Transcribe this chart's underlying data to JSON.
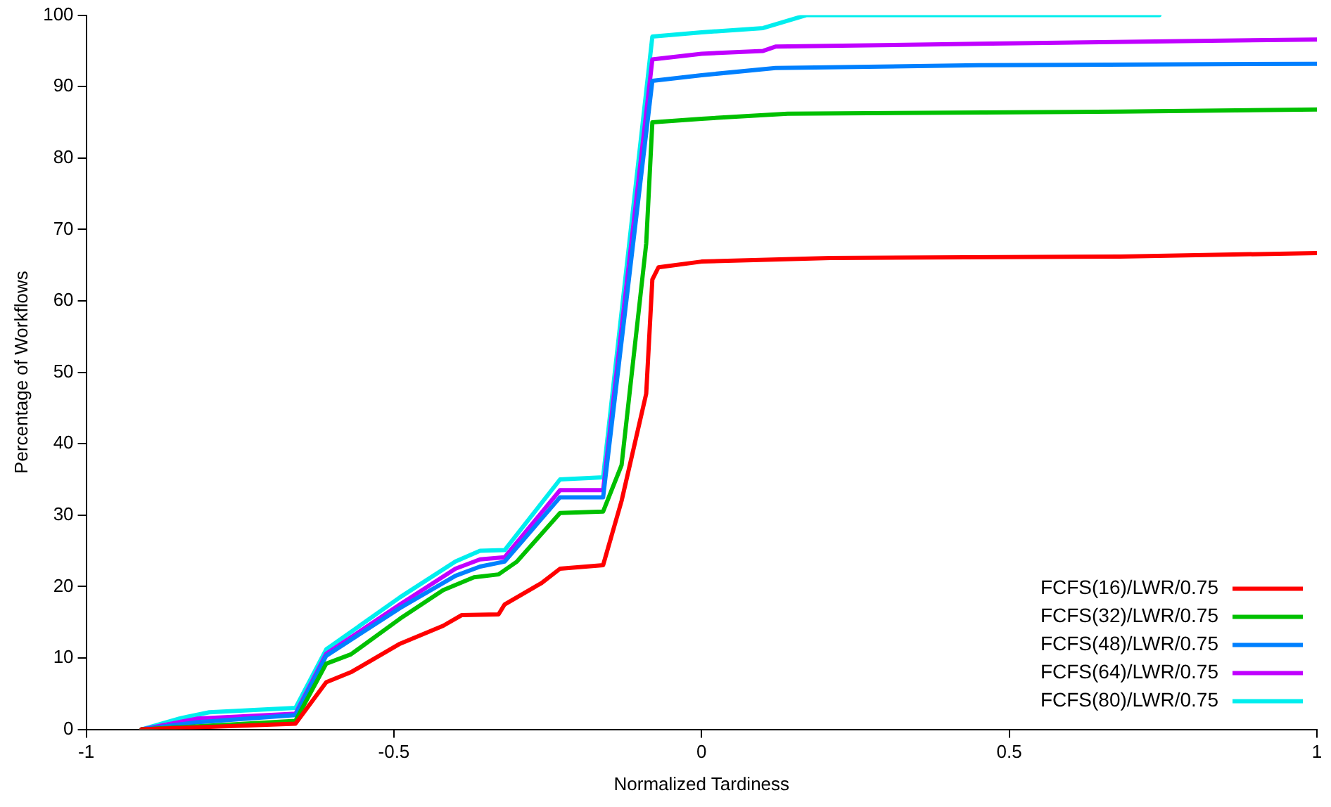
{
  "chart_data": {
    "type": "line",
    "xlabel": "Normalized Tardiness",
    "ylabel": "Percentage of Workflows",
    "xlim": [
      -1,
      1
    ],
    "xticks": [
      -1,
      -0.5,
      0,
      0.5,
      1
    ],
    "ylim": [
      0,
      100
    ],
    "yticks": [
      0,
      10,
      20,
      30,
      40,
      50,
      60,
      70,
      80,
      90,
      100
    ],
    "grid": false,
    "legend": "bottom right",
    "marker": "none",
    "line_style": "solid",
    "series": [
      {
        "name": "FCFS(16)/LWR/0.75",
        "color": "#ff0000",
        "x": [
          -0.91,
          -0.66,
          -0.61,
          -0.57,
          -0.49,
          -0.42,
          -0.39,
          -0.33,
          -0.32,
          -0.26,
          -0.23,
          -0.16,
          -0.13,
          -0.09,
          -0.08,
          -0.07,
          0,
          0.21,
          0.68,
          1
        ],
        "values": [
          0,
          0.8,
          6.6,
          8,
          12,
          14.5,
          16,
          16.1,
          17.5,
          20.5,
          22.5,
          23,
          32,
          47,
          63,
          64.7,
          65.5,
          66,
          66.2,
          66.7
        ]
      },
      {
        "name": "FCFS(32)/LWR/0.75",
        "color": "#00c000",
        "x": [
          -0.91,
          -0.66,
          -0.61,
          -0.57,
          -0.49,
          -0.42,
          -0.37,
          -0.33,
          -0.3,
          -0.23,
          -0.16,
          -0.13,
          -0.09,
          -0.08,
          0,
          0.14,
          0.68,
          1
        ],
        "values": [
          0,
          1.2,
          9.2,
          10.5,
          15.5,
          19.5,
          21.3,
          21.7,
          23.5,
          30.3,
          30.5,
          37,
          68,
          85,
          85.5,
          86.2,
          86.5,
          86.8
        ]
      },
      {
        "name": "FCFS(48)/LWR/0.75",
        "color": "#0080ff",
        "x": [
          -0.91,
          -0.82,
          -0.66,
          -0.61,
          -0.49,
          -0.4,
          -0.36,
          -0.32,
          -0.23,
          -0.16,
          -0.08,
          0,
          0.12,
          0.45,
          1
        ],
        "values": [
          0,
          1,
          2,
          10.3,
          17,
          21.5,
          22.8,
          23.5,
          32.5,
          32.5,
          90.8,
          91.6,
          92.6,
          93,
          93.2
        ]
      },
      {
        "name": "FCFS(64)/LWR/0.75",
        "color": "#c000ff",
        "x": [
          -0.91,
          -0.82,
          -0.66,
          -0.61,
          -0.49,
          -0.4,
          -0.36,
          -0.32,
          -0.23,
          -0.16,
          -0.08,
          0,
          0.1,
          0.12,
          0.45,
          1
        ],
        "values": [
          0,
          1.5,
          2.2,
          10.6,
          17.5,
          22.5,
          23.8,
          24.1,
          33.5,
          33.5,
          93.8,
          94.6,
          95,
          95.6,
          96,
          96.6
        ]
      },
      {
        "name": "FCFS(80)/LWR/0.75",
        "color": "#00eeee",
        "x": [
          -0.91,
          -0.845,
          -0.8,
          -0.66,
          -0.61,
          -0.49,
          -0.4,
          -0.36,
          -0.32,
          -0.23,
          -0.16,
          -0.08,
          0,
          0.1,
          0.17,
          0.744
        ],
        "values": [
          0,
          1.6,
          2.4,
          3,
          11.2,
          18.5,
          23.5,
          25,
          25.1,
          35,
          35.3,
          97,
          97.6,
          98.2,
          100,
          100
        ]
      }
    ]
  }
}
